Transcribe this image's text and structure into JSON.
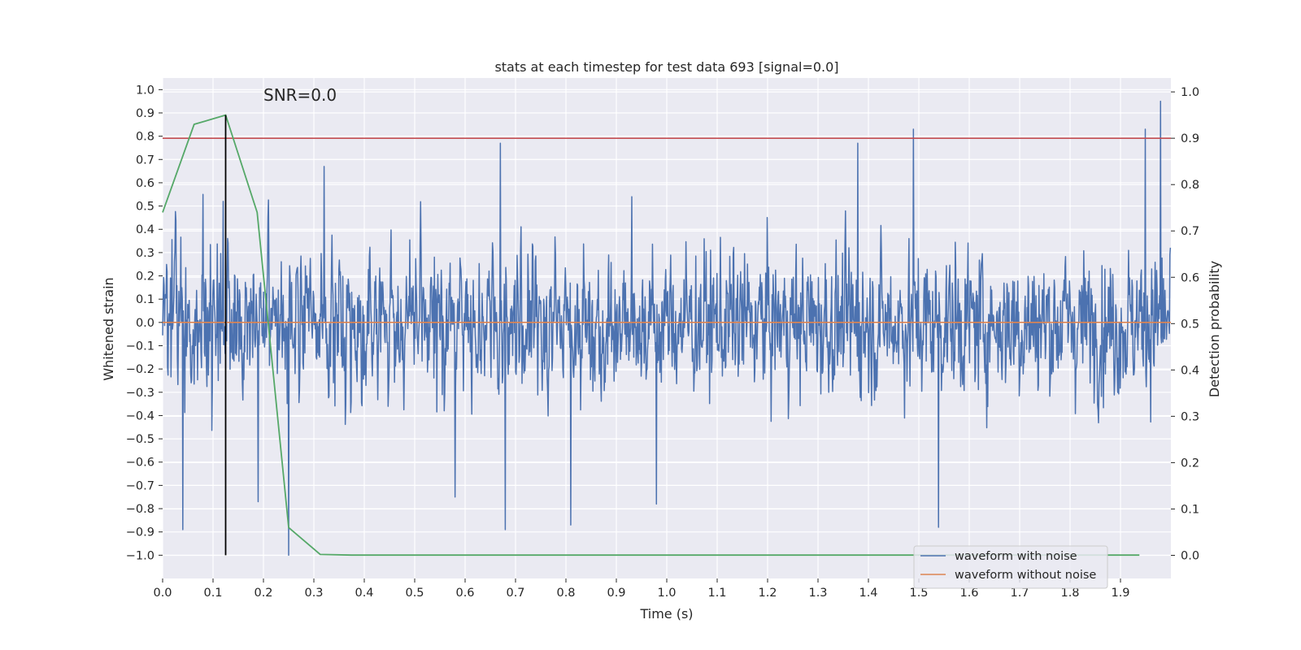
{
  "chart_data": {
    "type": "line",
    "title": "stats at each timestep for test data 693 [signal=0.0]",
    "annotation": "SNR=0.0",
    "xlabel": "Time (s)",
    "ylabel": "Whitened strain",
    "y2label": "Detection probability",
    "xlim": [
      0.0,
      2.0
    ],
    "ylim": [
      -1.1,
      1.05
    ],
    "y2lim": [
      -0.05,
      1.03
    ],
    "xticks": [
      0.0,
      0.1,
      0.2,
      0.3,
      0.4,
      0.5,
      0.6,
      0.7,
      0.8,
      0.9,
      1.0,
      1.1,
      1.2,
      1.3,
      1.4,
      1.5,
      1.6,
      1.7,
      1.8,
      1.9
    ],
    "xtick_labels": [
      "0.0",
      "0.1",
      "0.2",
      "0.3",
      "0.4",
      "0.5",
      "0.6",
      "0.7",
      "0.8",
      "0.9",
      "1.0",
      "1.1",
      "1.2",
      "1.3",
      "1.4",
      "1.5",
      "1.6",
      "1.7",
      "1.8",
      "1.9"
    ],
    "yticks": [
      1.0,
      0.9,
      0.8,
      0.7,
      0.6,
      0.5,
      0.4,
      0.3,
      0.2,
      0.1,
      0.0,
      -0.1,
      -0.2,
      -0.3,
      -0.4,
      -0.5,
      -0.6,
      -0.7,
      -0.8,
      -0.9,
      -1.0
    ],
    "ytick_labels": [
      "1.0",
      "0.9",
      "0.8",
      "0.7",
      "0.6",
      "0.5",
      "0.4",
      "0.3",
      "0.2",
      "0.1",
      "0.0",
      "−0.1",
      "−0.2",
      "−0.3",
      "−0.4",
      "−0.5",
      "−0.6",
      "−0.7",
      "−0.8",
      "−0.9",
      "−1.0"
    ],
    "y2ticks": [
      1.0,
      0.9,
      0.8,
      0.7,
      0.6,
      0.5,
      0.4,
      0.3,
      0.2,
      0.1,
      0.0
    ],
    "y2tick_labels": [
      "1.0",
      "0.9",
      "0.8",
      "0.7",
      "0.6",
      "0.5",
      "0.4",
      "0.3",
      "0.2",
      "0.1",
      "0.0"
    ],
    "noisy_waveform": {
      "name": "waveform with noise",
      "color": "#4c72b0",
      "samples": 2048,
      "amplitude_range": [
        -1.0,
        0.95
      ],
      "peaks": [
        {
          "t": 0.04,
          "v": -0.89
        },
        {
          "t": 0.08,
          "v": 0.55
        },
        {
          "t": 0.12,
          "v": 0.52
        },
        {
          "t": 0.19,
          "v": -0.77
        },
        {
          "t": 0.25,
          "v": -1.0
        },
        {
          "t": 0.32,
          "v": 0.67
        },
        {
          "t": 0.58,
          "v": -0.75
        },
        {
          "t": 0.67,
          "v": 0.77
        },
        {
          "t": 0.68,
          "v": -0.89
        },
        {
          "t": 0.81,
          "v": -0.87
        },
        {
          "t": 0.98,
          "v": -0.78
        },
        {
          "t": 1.38,
          "v": 0.77
        },
        {
          "t": 1.49,
          "v": 0.83
        },
        {
          "t": 1.54,
          "v": -0.88
        },
        {
          "t": 1.95,
          "v": 0.83
        },
        {
          "t": 1.98,
          "v": 0.95
        }
      ]
    },
    "clean_waveform": {
      "name": "waveform without noise",
      "color": "#dd8452",
      "value": 0.0
    },
    "detection_probability": {
      "color": "#55a868",
      "x": [
        0.0,
        0.0625,
        0.125,
        0.1875,
        0.25,
        0.3125,
        0.375,
        0.4375,
        0.5,
        0.5625,
        0.625,
        0.6875,
        0.75,
        0.8125,
        0.875,
        0.9375,
        1.0,
        1.0625,
        1.125,
        1.1875,
        1.25,
        1.3125,
        1.375,
        1.4375,
        1.5,
        1.5625,
        1.625,
        1.6875,
        1.75,
        1.8125,
        1.875,
        1.9375
      ],
      "y": [
        0.74,
        0.93,
        0.95,
        0.74,
        0.06,
        0.002,
        0.0005,
        0.0005,
        0.0005,
        0.0005,
        0.0005,
        0.0005,
        0.0005,
        0.0005,
        0.0005,
        0.0005,
        0.0005,
        0.0005,
        0.0005,
        0.0005,
        0.0005,
        0.0005,
        0.0005,
        0.0005,
        0.0005,
        0.0005,
        0.0005,
        0.0005,
        0.0005,
        0.0005,
        0.0005,
        0.0005
      ]
    },
    "threshold": {
      "color": "#c44e52",
      "value": 0.9,
      "axis": "y2"
    },
    "marker_time": {
      "color": "#000000",
      "value": 0.125
    },
    "legend": [
      "waveform with noise",
      "waveform without noise"
    ],
    "legend_loc": "lower right",
    "grid": true
  }
}
